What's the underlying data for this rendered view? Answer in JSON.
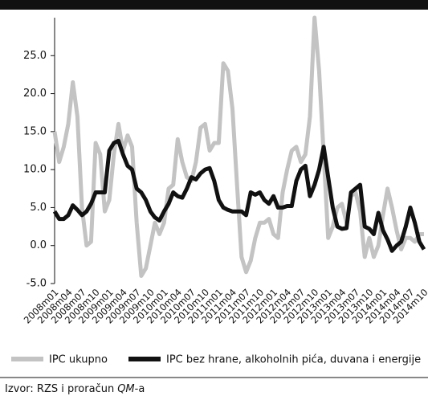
{
  "chart_data": {
    "type": "line",
    "categories": [
      "2008m01",
      null,
      null,
      "2008m04",
      null,
      null,
      "2008m07",
      null,
      null,
      "2008m10",
      null,
      null,
      "2009m01",
      null,
      null,
      "2009m04",
      null,
      null,
      "2009m07",
      null,
      null,
      "2009m10",
      null,
      null,
      "2010m01",
      null,
      null,
      "2010m04",
      null,
      null,
      "2010m07",
      null,
      null,
      "2010m10",
      null,
      null,
      "2011m01",
      null,
      null,
      "2011m04",
      null,
      null,
      "2011m07",
      null,
      null,
      "2011m10",
      null,
      null,
      "2012m01",
      null,
      null,
      "2012m04",
      null,
      null,
      "2012m07",
      null,
      null,
      "2012m10",
      null,
      null,
      "2013m01",
      null,
      null,
      "2013m04",
      null,
      null,
      "2013m07",
      null,
      null,
      "2013m10",
      null,
      null,
      "2014m01",
      null,
      null,
      "2014m04",
      null,
      null,
      "2014m07",
      null,
      null,
      "2014m10"
    ],
    "series": [
      {
        "name": "IPC ukupno",
        "color": "#c3c3c3",
        "values": [
          15,
          11,
          13,
          16,
          21.5,
          17,
          5,
          0,
          0.5,
          13.5,
          12,
          4.5,
          6,
          12,
          16,
          12.5,
          14.5,
          13,
          3,
          -4,
          -3,
          0,
          3,
          1.5,
          3,
          7.5,
          8,
          14,
          11,
          9,
          8.5,
          11,
          15.5,
          16,
          12.5,
          13.5,
          13.5,
          24,
          23,
          18,
          8,
          -1.5,
          -3.5,
          -2,
          1,
          3,
          3,
          3.5,
          1.5,
          1,
          7,
          10,
          12.5,
          13,
          11,
          12,
          17,
          30,
          23,
          12,
          1,
          2.5,
          5,
          5.5,
          3,
          6.5,
          7,
          4.5,
          -1.5,
          1,
          -1.5,
          0,
          4,
          7.5,
          5,
          2,
          -0.5,
          1,
          1,
          0.5,
          1.5,
          1.5
        ]
      },
      {
        "name": "IPC bez hrane, alkoholnih pića, duvana i energije",
        "color": "#111111",
        "values": [
          4.5,
          3.5,
          3.5,
          4,
          5.3,
          4.7,
          4,
          4.5,
          5.5,
          7,
          7,
          7,
          12.5,
          13.5,
          13.8,
          12,
          10.5,
          10,
          7.5,
          7,
          6,
          4.5,
          3.7,
          3.3,
          4.5,
          5.5,
          7,
          6.5,
          6.3,
          7.5,
          9,
          8.7,
          9.5,
          10,
          10.2,
          8.5,
          6,
          5,
          4.7,
          4.5,
          4.5,
          4.5,
          4,
          7,
          6.7,
          7,
          6,
          5.5,
          6.5,
          5,
          5,
          5.2,
          5.2,
          8.5,
          10,
          10.5,
          6.5,
          8,
          10,
          13,
          9,
          5,
          2.5,
          2.2,
          2.3,
          7,
          7.5,
          8,
          2.5,
          2.2,
          1.5,
          4.3,
          2,
          0.8,
          -0.7,
          0,
          0.5,
          2.5,
          5,
          3,
          0.5,
          -0.5
        ]
      }
    ],
    "ylim": [
      -5,
      30
    ],
    "yticks": [
      {
        "value": -5,
        "label": "-5.0"
      },
      {
        "value": 0,
        "label": "0.0"
      },
      {
        "value": 5,
        "label": "5.0"
      },
      {
        "value": 10,
        "label": "10.0"
      },
      {
        "value": 15,
        "label": "15.0"
      },
      {
        "value": 20,
        "label": "20.0"
      },
      {
        "value": 25,
        "label": "25.0"
      }
    ],
    "grid": false,
    "legend": "bottom"
  },
  "source": {
    "text": "Izvor: RZS i proračun",
    "emph": "QM",
    "suffix": "-a"
  }
}
